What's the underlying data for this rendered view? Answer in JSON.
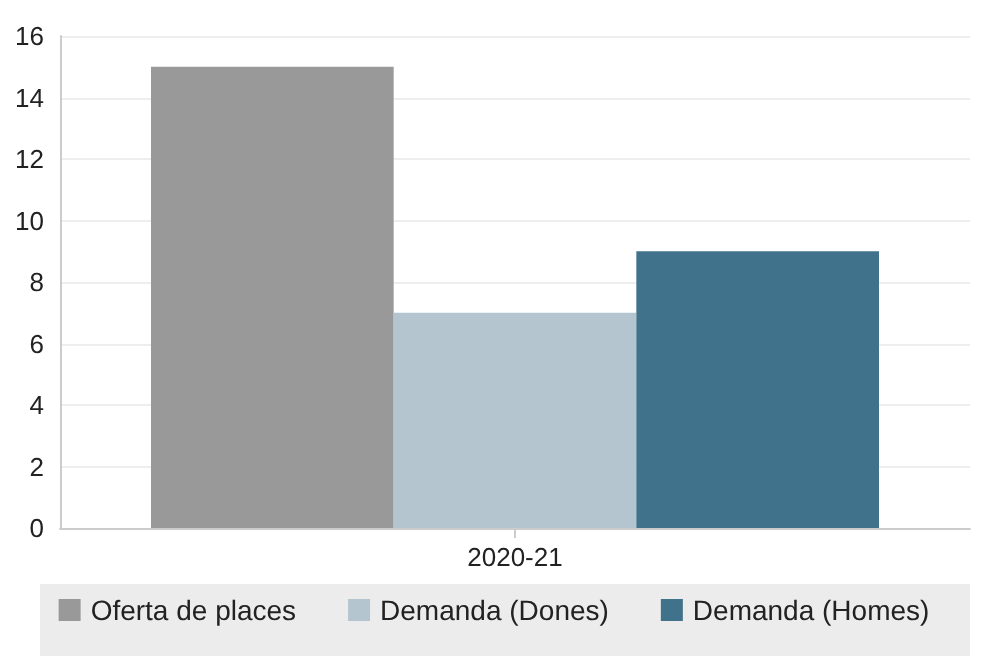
{
  "chart_data": {
    "type": "bar",
    "categories": [
      "2020-21"
    ],
    "series": [
      {
        "name": "Oferta de places",
        "color": "#999999",
        "values": [
          15
        ]
      },
      {
        "name": "Demanda (Dones)",
        "color": "#b4c5cf",
        "values": [
          7
        ]
      },
      {
        "name": "Demanda (Homes)",
        "color": "#41728b",
        "values": [
          9
        ]
      }
    ],
    "ylim": [
      0,
      16
    ],
    "yticks": [
      0,
      2,
      4,
      6,
      8,
      10,
      12,
      14,
      16
    ],
    "grid": "y",
    "legend": "bottom"
  }
}
